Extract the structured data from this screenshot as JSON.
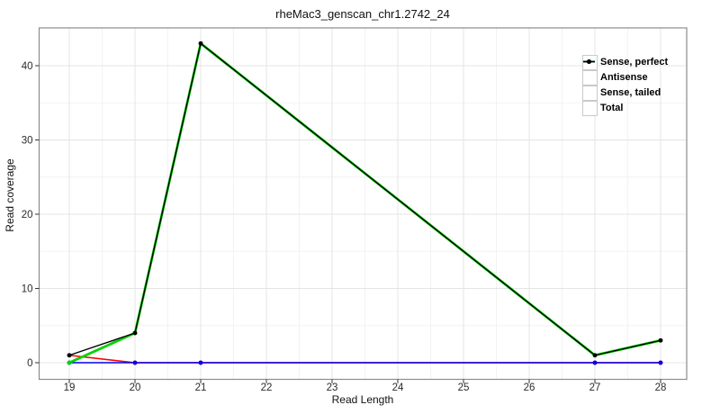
{
  "chart_data": {
    "type": "line",
    "title": "rheMac3_genscan_chr1.2742_24",
    "xlabel": "Read Length",
    "ylabel": "Read coverage",
    "x": [
      19,
      20,
      21,
      27,
      28
    ],
    "series": [
      {
        "name": "Sense, perfect",
        "color": "#FF0000",
        "values": [
          1,
          0,
          0,
          0,
          0
        ]
      },
      {
        "name": "Antisense",
        "color": "#0000EE",
        "values": [
          0,
          0,
          0,
          0,
          0
        ]
      },
      {
        "name": "Sense, tailed",
        "color": "#00D400",
        "values": [
          0,
          4,
          43,
          1,
          3
        ]
      },
      {
        "name": "Total",
        "color": "#000000",
        "values": [
          1,
          4,
          43,
          1,
          3
        ]
      }
    ],
    "x_ticks": [
      19,
      20,
      21,
      22,
      23,
      24,
      25,
      26,
      27,
      28
    ],
    "y_ticks": [
      0,
      10,
      20,
      30,
      40
    ],
    "xlim": [
      18.54,
      28.4
    ],
    "ylim": [
      -2.24,
      44.95
    ],
    "grid": true,
    "legend_position": "top-right-inside",
    "legend_order": [
      "Sense, perfect",
      "Antisense",
      "Sense, tailed",
      "Total"
    ]
  },
  "style_colors": {
    "grid_major": "#e4e4e4",
    "grid_minor": "#f2f2f2",
    "panel_border": "#8c8c8c",
    "tick_mark": "#333333",
    "tick_label": "#2b2b2b"
  }
}
